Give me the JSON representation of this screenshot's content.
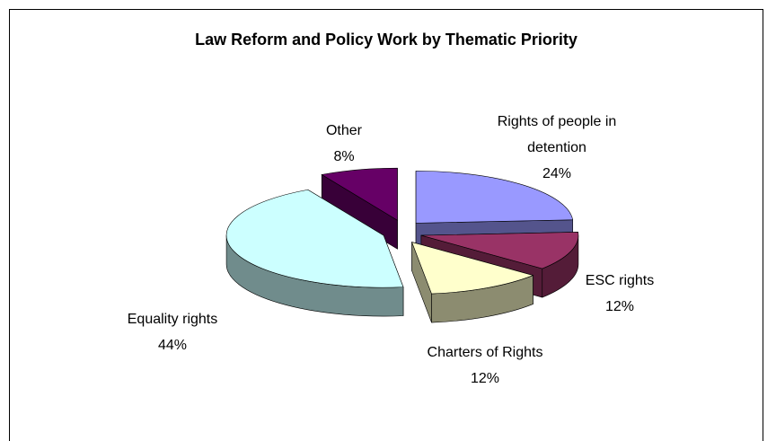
{
  "chart_data": {
    "type": "pie3d",
    "title": "Law Reform and Policy Work by Thematic Priority",
    "categories": [
      "Rights of people in detention",
      "ESC rights",
      "Charters of Rights",
      "Equality rights",
      "Other"
    ],
    "values": [
      24,
      12,
      12,
      44,
      8
    ],
    "value_labels": [
      "24%",
      "12%",
      "12%",
      "44%",
      "8%"
    ],
    "colors": [
      "#9999ff",
      "#993366",
      "#ffffcc",
      "#ccffff",
      "#660066"
    ]
  }
}
